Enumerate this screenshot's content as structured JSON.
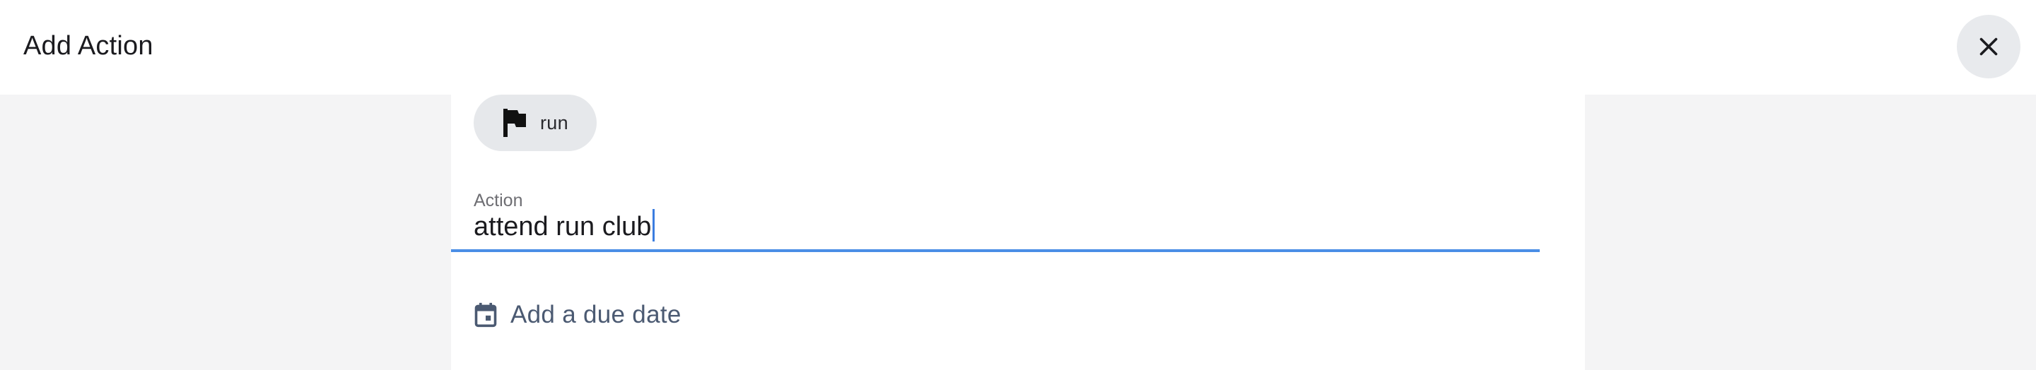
{
  "dialog": {
    "title": "Add Action"
  },
  "goal_chip": {
    "label": "run",
    "icon": "flag-icon"
  },
  "action_field": {
    "label": "Action",
    "value": "attend run club"
  },
  "due_date": {
    "label": "Add a due date",
    "icon": "calendar-icon"
  },
  "colors": {
    "accent": "#4a8ee6",
    "background": "#f4f4f5",
    "chip": "#e6e8eb",
    "link_text": "#4b5a72"
  }
}
